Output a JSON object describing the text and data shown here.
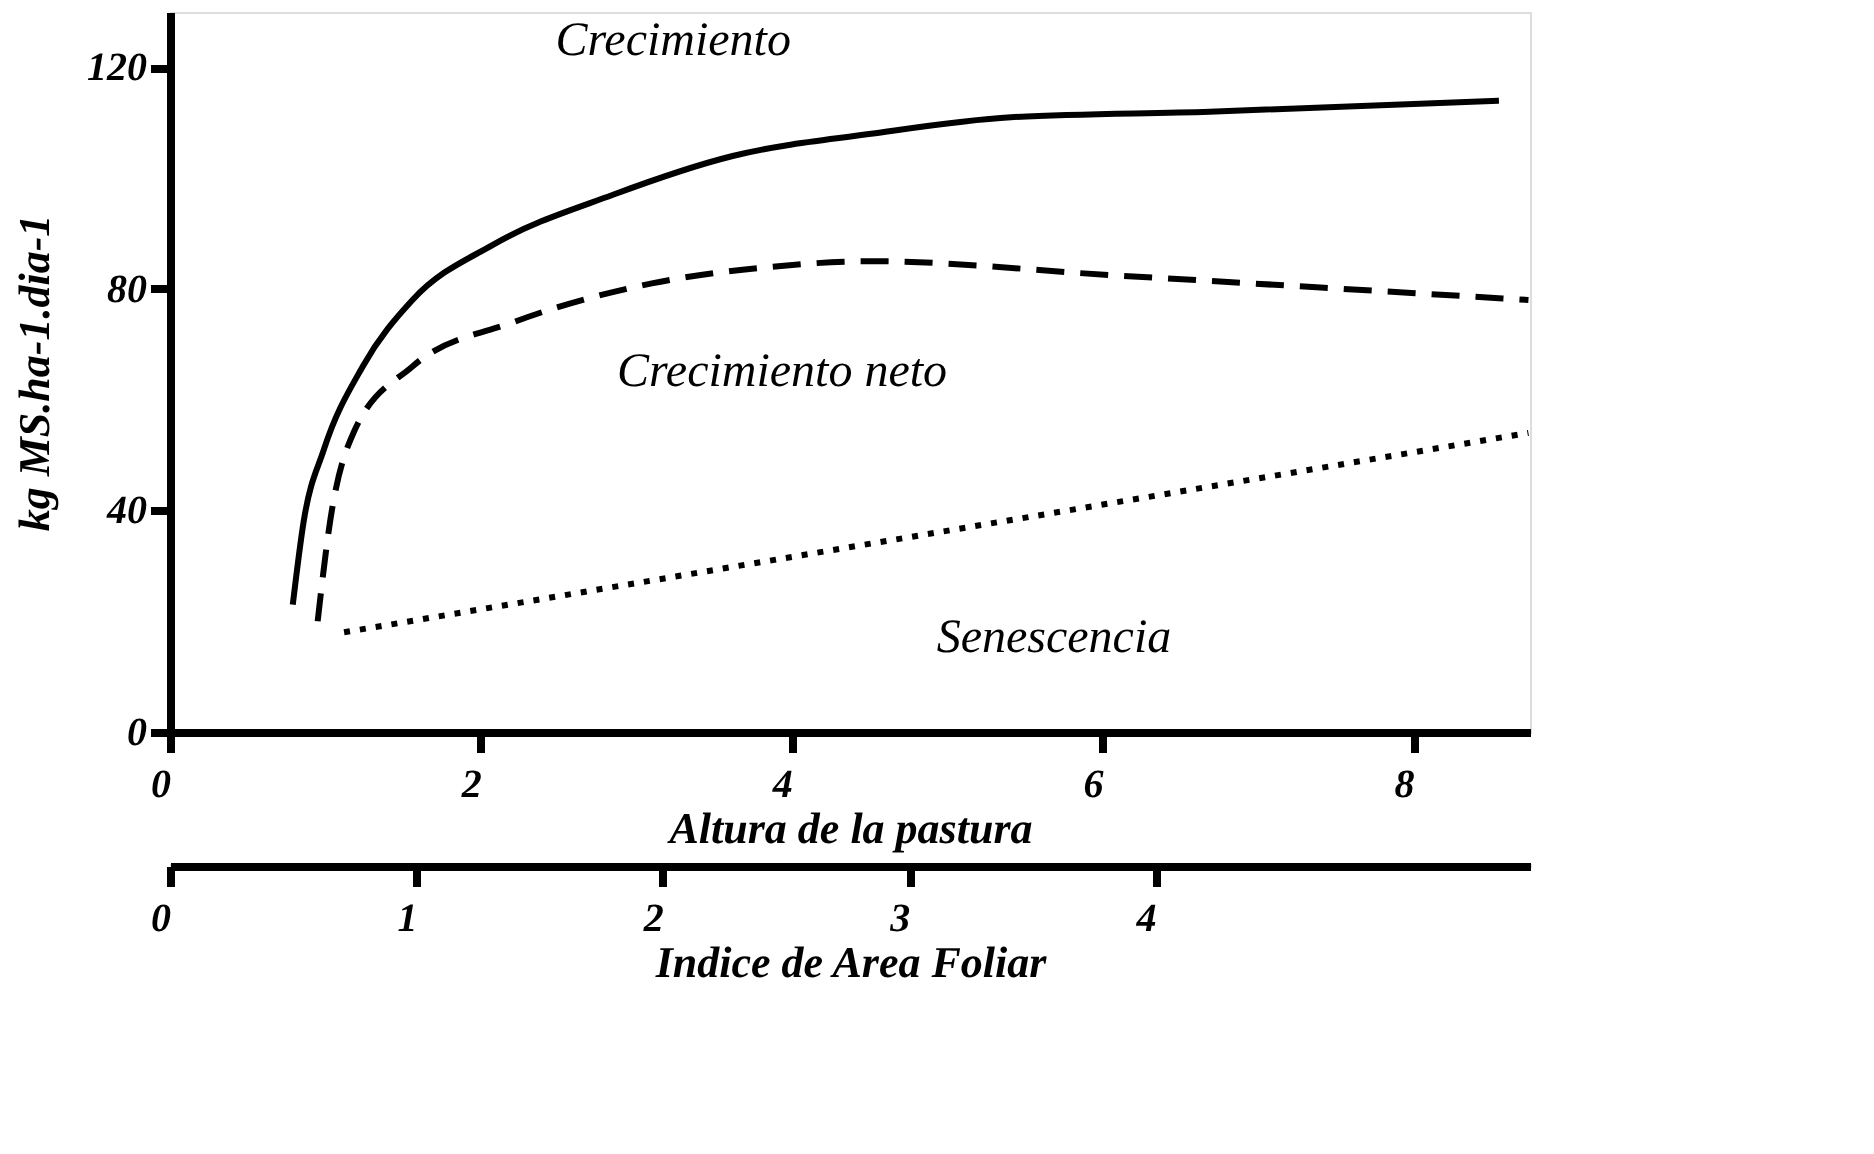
{
  "chart_data": {
    "type": "line",
    "xlabel": "Altura de la pastura",
    "ylabel": "kg MS.ha-1.dia-1",
    "x2label": "Indice de Area Foliar",
    "xlim": [
      0,
      8.75
    ],
    "xticks": [
      0,
      2,
      4,
      6,
      8
    ],
    "ylim": [
      0,
      130
    ],
    "yticks": [
      0,
      40,
      80,
      120
    ],
    "x2lim": [
      0,
      5.52
    ],
    "x2ticks": [
      0,
      1,
      2,
      3,
      4
    ],
    "grid": false,
    "marker": "none",
    "series": [
      {
        "color": "#000000",
        "line_style": "solid",
        "x": [
          0.79,
          0.86,
          0.99,
          1.24,
          1.56,
          2.08,
          2.85,
          3.62,
          4.51,
          5.41,
          6.69,
          8.55
        ],
        "values": [
          23,
          38,
          51,
          66,
          78,
          88,
          97,
          104,
          108,
          111,
          112,
          114
        ]
      },
      {
        "color": "#000000",
        "line_style": "dashed",
        "x": [
          0.95,
          1.03,
          1.18,
          1.56,
          2.21,
          3.1,
          3.87,
          4.51,
          6.05,
          8.74
        ],
        "values": [
          20,
          38,
          54,
          66,
          74,
          81,
          84,
          85,
          82.5,
          78
        ]
      },
      {
        "color": "#000000",
        "line_style": "dotted",
        "x": [
          1.12,
          8.74
        ],
        "values": [
          18,
          54
        ]
      }
    ],
    "annotations": [
      "Crecimiento",
      "Crecimiento neto",
      "Senescencia"
    ]
  }
}
